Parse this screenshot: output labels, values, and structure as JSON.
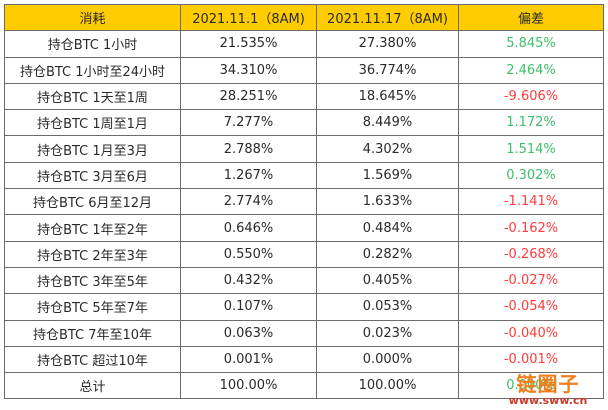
{
  "table": {
    "headers": [
      "消耗",
      "2021.11.1（8AM)",
      "2021.11.17（8AM)",
      "偏差"
    ],
    "rows": [
      {
        "label": "持仓BTC 1小时",
        "v1": "21.535%",
        "v2": "27.380%",
        "diff": "5.845%",
        "sign": "pos"
      },
      {
        "label": "持仓BTC 1小时至24小时",
        "v1": "34.310%",
        "v2": "36.774%",
        "diff": "2.464%",
        "sign": "pos"
      },
      {
        "label": "持仓BTC 1天至1周",
        "v1": "28.251%",
        "v2": "18.645%",
        "diff": "-9.606%",
        "sign": "neg"
      },
      {
        "label": "持仓BTC 1周至1月",
        "v1": "7.277%",
        "v2": "8.449%",
        "diff": "1.172%",
        "sign": "pos"
      },
      {
        "label": "持仓BTC 1月至3月",
        "v1": "2.788%",
        "v2": "4.302%",
        "diff": "1.514%",
        "sign": "pos"
      },
      {
        "label": "持仓BTC 3月至6月",
        "v1": "1.267%",
        "v2": "1.569%",
        "diff": "0.302%",
        "sign": "pos"
      },
      {
        "label": "持仓BTC 6月至12月",
        "v1": "2.774%",
        "v2": "1.633%",
        "diff": "-1.141%",
        "sign": "neg"
      },
      {
        "label": "持仓BTC 1年至2年",
        "v1": "0.646%",
        "v2": "0.484%",
        "diff": "-0.162%",
        "sign": "neg"
      },
      {
        "label": "持仓BTC 2年至3年",
        "v1": "0.550%",
        "v2": "0.282%",
        "diff": "-0.268%",
        "sign": "neg"
      },
      {
        "label": "持仓BTC 3年至5年",
        "v1": "0.432%",
        "v2": "0.405%",
        "diff": "-0.027%",
        "sign": "neg"
      },
      {
        "label": "持仓BTC 5年至7年",
        "v1": "0.107%",
        "v2": "0.053%",
        "diff": "-0.054%",
        "sign": "neg"
      },
      {
        "label": "持仓BTC 7年至10年",
        "v1": "0.063%",
        "v2": "0.023%",
        "diff": "-0.040%",
        "sign": "neg"
      },
      {
        "label": "持仓BTC 超过10年",
        "v1": "0.001%",
        "v2": "0.000%",
        "diff": "-0.001%",
        "sign": "neg"
      },
      {
        "label": "总计",
        "v1": "100.00%",
        "v2": "100.00%",
        "diff": "0.000%",
        "sign": "pos"
      }
    ]
  },
  "watermark": {
    "name": "链圈子",
    "url": "www.sww.cn"
  },
  "colors": {
    "header_bg": "#ffcc00",
    "positive": "#3dbf6e",
    "negative": "#ff3b3b",
    "border": "#6b6b6b"
  }
}
